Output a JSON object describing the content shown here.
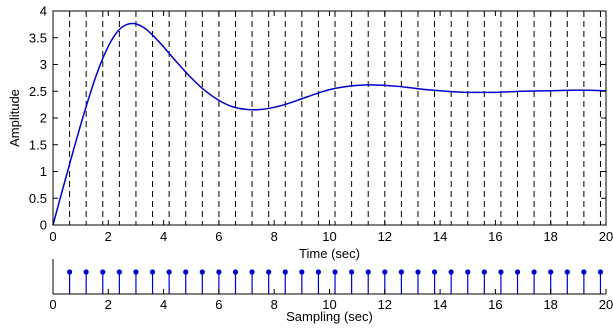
{
  "chart_data": [
    {
      "type": "line",
      "xlabel": "Time (sec)",
      "ylabel": "Amplitude",
      "xlim": [
        0,
        20
      ],
      "ylim": [
        0,
        4
      ],
      "xticks": [
        "0",
        "2",
        "4",
        "6",
        "8",
        "10",
        "12",
        "14",
        "16",
        "18",
        "20"
      ],
      "yticks": [
        "0",
        "0.5",
        "1",
        "1.5",
        "2",
        "2.5",
        "3",
        "3.5",
        "4"
      ],
      "grid": false,
      "vertical_markers": {
        "style": "dashed",
        "color": "#000000",
        "x": [
          0.6,
          1.2,
          1.8,
          2.4,
          3.0,
          3.6,
          4.2,
          4.8,
          5.4,
          6.0,
          6.6,
          7.2,
          7.8,
          8.4,
          9.0,
          9.6,
          10.2,
          10.8,
          11.4,
          12.0,
          12.6,
          13.2,
          13.8,
          14.4,
          15.0,
          15.6,
          16.2,
          16.8,
          17.4,
          18.0,
          18.6,
          19.2,
          19.8
        ]
      },
      "series": [
        {
          "color": "#0000cc",
          "x": [
            0,
            0.25,
            0.5,
            0.75,
            1.0,
            1.25,
            1.5,
            1.75,
            2.0,
            2.25,
            2.5,
            2.75,
            3.0,
            3.25,
            3.5,
            3.75,
            4.0,
            4.5,
            5.0,
            5.5,
            6.0,
            6.5,
            7.0,
            7.5,
            8.0,
            8.5,
            9.0,
            9.5,
            10.0,
            10.5,
            11.0,
            11.5,
            12.0,
            12.5,
            13.0,
            13.5,
            14.0,
            14.5,
            15.0,
            15.5,
            16.0,
            16.5,
            17.0,
            18.0,
            19.0,
            20.0
          ],
          "values": [
            0,
            0.48,
            0.95,
            1.42,
            1.87,
            2.3,
            2.7,
            3.05,
            3.34,
            3.56,
            3.7,
            3.76,
            3.76,
            3.7,
            3.6,
            3.47,
            3.33,
            3.03,
            2.75,
            2.51,
            2.33,
            2.21,
            2.16,
            2.16,
            2.2,
            2.27,
            2.36,
            2.45,
            2.53,
            2.58,
            2.61,
            2.62,
            2.61,
            2.59,
            2.56,
            2.53,
            2.51,
            2.49,
            2.48,
            2.48,
            2.48,
            2.49,
            2.5,
            2.51,
            2.52,
            2.51
          ]
        }
      ]
    },
    {
      "type": "stem",
      "xlabel": "Sampling (sec)",
      "xlim": [
        0,
        20
      ],
      "xticks": [
        "0",
        "2",
        "4",
        "6",
        "8",
        "10",
        "12",
        "14",
        "16",
        "18",
        "20"
      ],
      "color": "#0000cc",
      "x": [
        0.6,
        1.2,
        1.8,
        2.4,
        3.0,
        3.6,
        4.2,
        4.8,
        5.4,
        6.0,
        6.6,
        7.2,
        7.8,
        8.4,
        9.0,
        9.6,
        10.2,
        10.8,
        11.4,
        12.0,
        12.6,
        13.2,
        13.8,
        14.4,
        15.0,
        15.6,
        16.2,
        16.8,
        17.4,
        18.0,
        18.6,
        19.2,
        19.8
      ],
      "values": [
        1,
        1,
        1,
        1,
        1,
        1,
        1,
        1,
        1,
        1,
        1,
        1,
        1,
        1,
        1,
        1,
        1,
        1,
        1,
        1,
        1,
        1,
        1,
        1,
        1,
        1,
        1,
        1,
        1,
        1,
        1,
        1,
        1
      ]
    }
  ]
}
